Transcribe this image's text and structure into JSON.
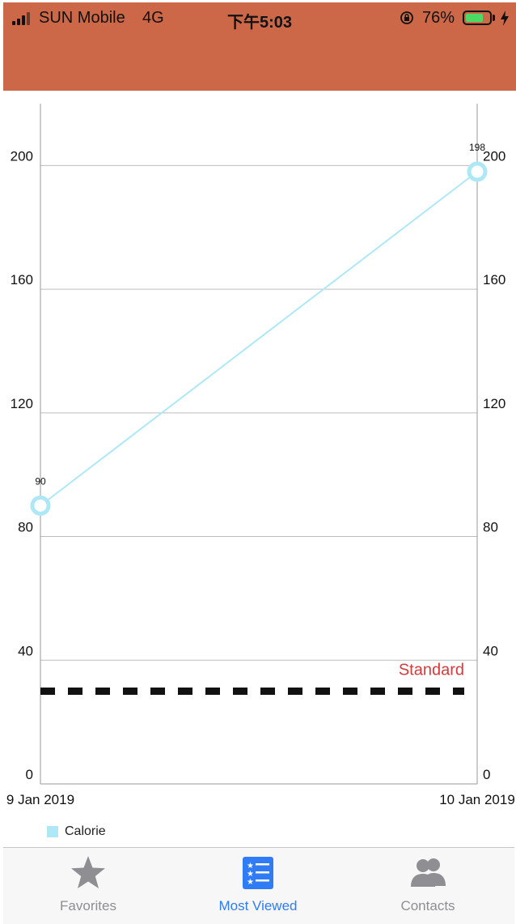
{
  "status_bar": {
    "carrier": "SUN Mobile",
    "network": "4G",
    "time": "下午5:03",
    "battery_percent": "76%",
    "battery_level": 0.76,
    "background_color": "#cc6847",
    "icons": [
      "signal-icon",
      "rotation-lock-icon",
      "battery-icon",
      "charging-icon"
    ]
  },
  "chart_data": {
    "type": "line",
    "x": [
      "9 Jan 2019",
      "10 Jan 2019"
    ],
    "series": [
      {
        "name": "Calorie",
        "values": [
          90,
          198
        ],
        "color": "#aee8f6",
        "data_labels": [
          "90",
          "198"
        ]
      }
    ],
    "reference_line": {
      "label": "Standard",
      "value": 30,
      "style": "dashed",
      "color": "#111111",
      "label_color": "#d63a3a"
    },
    "ylim": [
      0,
      220
    ],
    "yticks": [
      0,
      40,
      80,
      120,
      160,
      200
    ],
    "ytick_labels": [
      "0",
      "40",
      "80",
      "120",
      "160",
      "200"
    ],
    "ytick_labels_right": [
      "0",
      "40",
      "80",
      "120",
      "160",
      "200"
    ],
    "grid": true,
    "legend": "bottom-left",
    "title": "",
    "xlabel": "",
    "ylabel": ""
  },
  "tab_bar": {
    "active_color": "#2f7cf6",
    "inactive_color": "#8e8e93",
    "tabs": [
      {
        "label": "Favorites",
        "icon": "star-icon",
        "active": false
      },
      {
        "label": "Most Viewed",
        "icon": "starred-list-icon",
        "active": true
      },
      {
        "label": "Contacts",
        "icon": "contacts-icon",
        "active": false
      }
    ]
  }
}
